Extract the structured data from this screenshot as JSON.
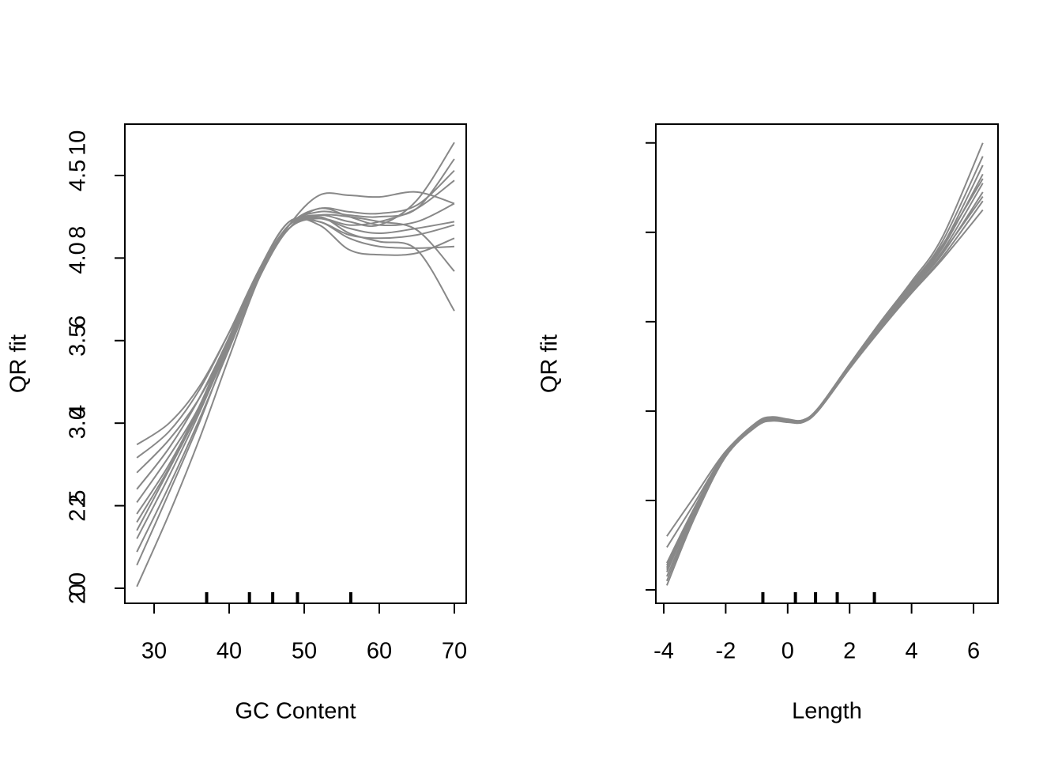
{
  "chart_data": [
    {
      "type": "line",
      "xlabel": "GC Content",
      "ylabel": "QR fit",
      "color": "#888888",
      "x": [
        27.7,
        32,
        36,
        40,
        44,
        48,
        52,
        56,
        60,
        65,
        70
      ],
      "series": [
        {
          "values": [
            2.87,
            3.0,
            3.22,
            3.55,
            3.92,
            4.18,
            4.3,
            4.25,
            4.2,
            4.22,
            4.33
          ]
        },
        {
          "values": [
            2.01,
            2.45,
            2.9,
            3.4,
            3.88,
            4.2,
            4.26,
            4.22,
            4.2,
            4.35,
            4.7
          ]
        },
        {
          "values": [
            2.52,
            2.8,
            3.1,
            3.5,
            3.9,
            4.2,
            4.38,
            4.38,
            4.37,
            4.4,
            4.33
          ]
        },
        {
          "values": [
            2.22,
            2.62,
            3.02,
            3.45,
            3.88,
            4.18,
            4.25,
            4.15,
            4.1,
            4.05,
            3.68
          ]
        },
        {
          "values": [
            2.35,
            2.72,
            3.08,
            3.5,
            3.9,
            4.2,
            4.22,
            4.12,
            4.07,
            4.06,
            4.07
          ]
        },
        {
          "values": [
            2.7,
            2.9,
            3.15,
            3.5,
            3.9,
            4.2,
            4.28,
            4.26,
            4.25,
            4.3,
            4.6
          ]
        },
        {
          "values": [
            2.45,
            2.75,
            3.1,
            3.52,
            3.93,
            4.22,
            4.2,
            4.05,
            4.02,
            4.03,
            4.12
          ]
        },
        {
          "values": [
            2.14,
            2.58,
            3.0,
            3.47,
            3.9,
            4.18,
            4.24,
            4.2,
            4.22,
            4.3,
            4.47
          ]
        },
        {
          "values": [
            2.6,
            2.85,
            3.15,
            3.52,
            3.92,
            4.2,
            4.26,
            4.25,
            4.22,
            4.17,
            3.92
          ]
        },
        {
          "values": [
            2.3,
            2.68,
            3.06,
            3.48,
            3.9,
            4.2,
            4.24,
            4.18,
            4.15,
            4.18,
            4.22
          ]
        },
        {
          "values": [
            2.79,
            2.95,
            3.2,
            3.55,
            3.93,
            4.22,
            4.22,
            4.14,
            4.12,
            4.14,
            4.2
          ]
        },
        {
          "values": [
            2.4,
            2.73,
            3.08,
            3.5,
            3.91,
            4.2,
            4.3,
            4.28,
            4.27,
            4.32,
            4.53
          ]
        }
      ],
      "xlim": [
        26.1,
        71.58
      ],
      "ylim": [
        1.909,
        4.811
      ],
      "xticks": [
        30,
        40,
        50,
        60,
        70
      ],
      "yticks": [
        {
          "value": 2,
          "label": "2.0"
        },
        2.5,
        {
          "value": 3,
          "label": "3.0"
        },
        3.5,
        {
          "value": 4,
          "label": "4.0"
        },
        4.5
      ],
      "rug": [
        37,
        42.7,
        45.8,
        49.1,
        56.2
      ]
    },
    {
      "type": "line",
      "xlabel": "Length",
      "ylabel": "QR fit",
      "color": "#888888",
      "x": [
        -3.9,
        -3,
        -2,
        -1,
        -0.5,
        0,
        0.5,
        1,
        2,
        3,
        4,
        5,
        6.3
      ],
      "series": [
        {
          "values": [
            1.2,
            2.1,
            3.1,
            3.72,
            3.84,
            3.8,
            3.8,
            4.08,
            5.05,
            6.0,
            6.9,
            7.9,
            10.0
          ]
        },
        {
          "values": [
            0.95,
            1.95,
            3.08,
            3.75,
            3.87,
            3.82,
            3.8,
            4.07,
            5.03,
            5.95,
            6.85,
            7.8,
            9.7
          ]
        },
        {
          "values": [
            0.6,
            1.85,
            3.05,
            3.7,
            3.82,
            3.78,
            3.78,
            4.05,
            5.0,
            5.92,
            6.8,
            7.7,
            9.5
          ]
        },
        {
          "values": [
            0.5,
            1.8,
            3.04,
            3.68,
            3.8,
            3.76,
            3.77,
            4.04,
            5.0,
            5.9,
            6.78,
            7.65,
            9.3
          ]
        },
        {
          "values": [
            0.4,
            1.78,
            3.03,
            3.72,
            3.85,
            3.8,
            3.78,
            4.05,
            4.98,
            5.88,
            6.75,
            7.58,
            9.1
          ]
        },
        {
          "values": [
            0.3,
            1.72,
            3.02,
            3.7,
            3.83,
            3.79,
            3.77,
            4.04,
            4.97,
            5.86,
            6.72,
            7.52,
            8.9
          ]
        },
        {
          "values": [
            0.2,
            1.68,
            3.0,
            3.68,
            3.8,
            3.77,
            3.76,
            4.03,
            4.96,
            5.84,
            6.68,
            7.45,
            8.7
          ]
        },
        {
          "values": [
            0.1,
            1.62,
            2.98,
            3.66,
            3.78,
            3.75,
            3.75,
            4.02,
            4.95,
            5.82,
            6.64,
            7.4,
            8.5
          ]
        },
        {
          "values": [
            0.55,
            1.82,
            3.05,
            3.74,
            3.86,
            3.81,
            3.79,
            4.06,
            5.01,
            5.93,
            6.82,
            7.72,
            9.2
          ]
        },
        {
          "values": [
            0.45,
            1.76,
            3.03,
            3.7,
            3.82,
            3.78,
            3.78,
            4.04,
            4.98,
            5.88,
            6.76,
            7.55,
            8.8
          ]
        }
      ],
      "xlim": [
        -4.255,
        6.79
      ],
      "ylim": [
        -0.3,
        10.42
      ],
      "xticks": [
        -4,
        -2,
        0,
        2,
        4,
        6
      ],
      "yticks": [
        0,
        2,
        4,
        6,
        8,
        10
      ],
      "rug": [
        -0.8,
        0.25,
        0.9,
        1.6,
        2.8
      ]
    }
  ]
}
